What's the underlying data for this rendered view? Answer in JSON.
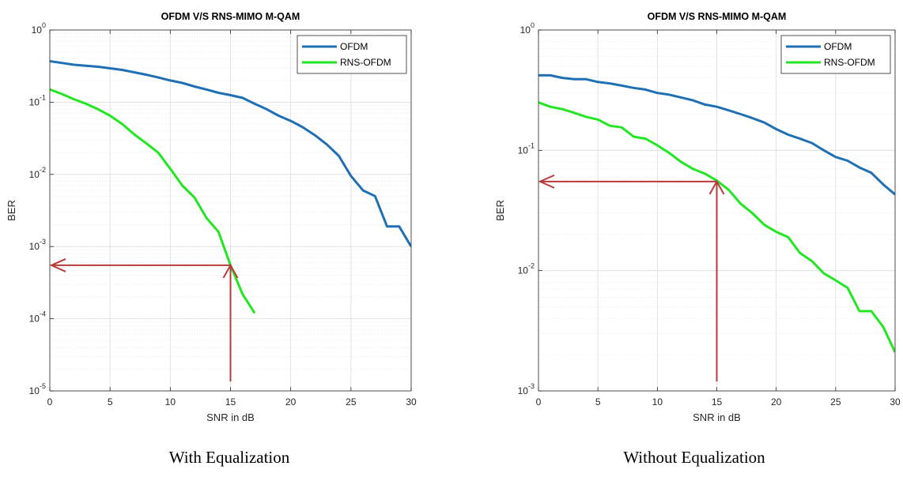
{
  "chart_data": [
    {
      "type": "line",
      "title": "OFDM V/S RNS-MIMO M-QAM",
      "xlabel": "SNR in dB",
      "ylabel": "BER",
      "caption": "With Equalization",
      "xlim": [
        0,
        30
      ],
      "ylim": [
        1e-05,
        1
      ],
      "yscale": "log",
      "grid": true,
      "legend_position": "top-right",
      "x_ticks": [
        "0",
        "5",
        "10",
        "15",
        "20",
        "25",
        "30"
      ],
      "y_tick_exponents": [
        "0",
        "-1",
        "-2",
        "-3",
        "-4",
        "-5"
      ],
      "series": [
        {
          "name": "OFDM",
          "color": "#1f6fb4",
          "x": [
            0,
            1,
            2,
            3,
            4,
            5,
            6,
            7,
            8,
            9,
            10,
            11,
            12,
            13,
            14,
            15,
            16,
            17,
            18,
            19,
            20,
            21,
            22,
            23,
            24,
            25,
            26,
            27,
            28,
            29,
            30
          ],
          "y": [
            0.37,
            0.35,
            0.33,
            0.32,
            0.31,
            0.295,
            0.28,
            0.26,
            0.24,
            0.22,
            0.2,
            0.185,
            0.165,
            0.15,
            0.135,
            0.125,
            0.115,
            0.095,
            0.08,
            0.065,
            0.055,
            0.045,
            0.035,
            0.026,
            0.018,
            0.0095,
            0.006,
            0.005,
            0.0019,
            0.0019,
            0.001
          ]
        },
        {
          "name": "RNS-OFDM",
          "color": "#22e622",
          "x": [
            0,
            1,
            2,
            3,
            4,
            5,
            6,
            7,
            8,
            9,
            10,
            11,
            12,
            13,
            14,
            15,
            16,
            17
          ],
          "y": [
            0.15,
            0.13,
            0.11,
            0.095,
            0.08,
            0.065,
            0.05,
            0.036,
            0.027,
            0.02,
            0.012,
            0.007,
            0.0048,
            0.0025,
            0.0016,
            0.00055,
            0.00022,
            0.00012
          ]
        }
      ],
      "annotation": {
        "snr": 15,
        "ber": 0.00055,
        "color": "#b83a3a"
      }
    },
    {
      "type": "line",
      "title": "OFDM V/S RNS-MIMO M-QAM",
      "xlabel": "SNR in dB",
      "ylabel": "BER",
      "caption": "Without Equalization",
      "xlim": [
        0,
        30
      ],
      "ylim": [
        0.001,
        1
      ],
      "yscale": "log",
      "grid": true,
      "legend_position": "top-right",
      "x_ticks": [
        "0",
        "5",
        "10",
        "15",
        "20",
        "25",
        "30"
      ],
      "y_tick_exponents": [
        "0",
        "-1",
        "-2",
        "-3"
      ],
      "series": [
        {
          "name": "OFDM",
          "color": "#1f6fb4",
          "x": [
            0,
            1,
            2,
            3,
            4,
            5,
            6,
            7,
            8,
            9,
            10,
            11,
            12,
            13,
            14,
            15,
            16,
            17,
            18,
            19,
            20,
            21,
            22,
            23,
            24,
            25,
            26,
            27,
            28,
            29,
            30
          ],
          "y": [
            0.42,
            0.42,
            0.4,
            0.39,
            0.39,
            0.37,
            0.36,
            0.345,
            0.33,
            0.32,
            0.3,
            0.29,
            0.275,
            0.26,
            0.24,
            0.23,
            0.215,
            0.2,
            0.185,
            0.17,
            0.15,
            0.135,
            0.125,
            0.115,
            0.1,
            0.088,
            0.082,
            0.072,
            0.065,
            0.052,
            0.043
          ]
        },
        {
          "name": "RNS-OFDM",
          "color": "#22e622",
          "x": [
            0,
            1,
            2,
            3,
            4,
            5,
            6,
            7,
            8,
            9,
            10,
            11,
            12,
            13,
            14,
            15,
            16,
            17,
            18,
            19,
            20,
            21,
            22,
            23,
            24,
            25,
            26,
            27,
            28,
            29,
            30
          ],
          "y": [
            0.25,
            0.23,
            0.22,
            0.205,
            0.19,
            0.18,
            0.16,
            0.155,
            0.13,
            0.125,
            0.11,
            0.095,
            0.08,
            0.07,
            0.064,
            0.056,
            0.047,
            0.036,
            0.03,
            0.024,
            0.021,
            0.019,
            0.014,
            0.012,
            0.0095,
            0.0083,
            0.0072,
            0.0046,
            0.0046,
            0.0034,
            0.0021
          ]
        }
      ],
      "annotation": {
        "snr": 15,
        "ber": 0.055,
        "color": "#b83a3a"
      }
    }
  ]
}
